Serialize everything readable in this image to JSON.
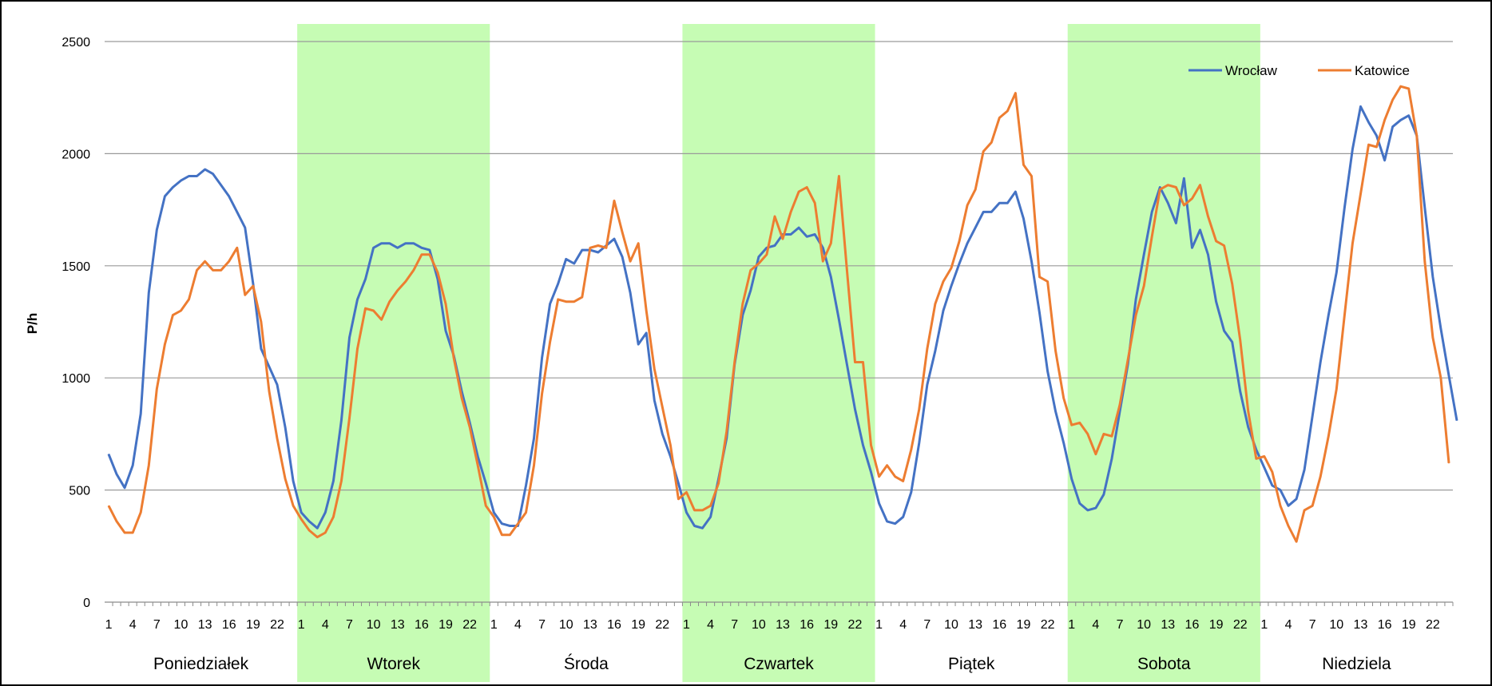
{
  "chart_data": {
    "type": "line",
    "ylabel": "P/h",
    "ylim": [
      0,
      2500
    ],
    "yticks": [
      0,
      500,
      1000,
      1500,
      2000,
      2500
    ],
    "grid": true,
    "legend_position": "top-right",
    "hour_tick_labels": [
      "1",
      "4",
      "7",
      "10",
      "13",
      "16",
      "19",
      "22"
    ],
    "days": [
      "Poniedziałek",
      "Wtorek",
      "Środa",
      "Czwartek",
      "Piątek",
      "Sobota",
      "Niedziela"
    ],
    "highlight_days": [
      1,
      3,
      5
    ],
    "highlight_color": "#c6fcb4",
    "series": [
      {
        "name": "Wrocław",
        "color": "#4472c4",
        "values": [
          660,
          570,
          510,
          610,
          840,
          1380,
          1660,
          1810,
          1850,
          1880,
          1900,
          1900,
          1930,
          1910,
          1860,
          1810,
          1740,
          1670,
          1420,
          1130,
          1050,
          970,
          780,
          540,
          400,
          360,
          330,
          400,
          540,
          810,
          1180,
          1350,
          1440,
          1580,
          1600,
          1600,
          1580,
          1600,
          1600,
          1580,
          1570,
          1440,
          1210,
          1100,
          940,
          800,
          650,
          530,
          400,
          350,
          340,
          340,
          520,
          730,
          1090,
          1330,
          1420,
          1530,
          1510,
          1570,
          1570,
          1560,
          1590,
          1620,
          1540,
          1380,
          1150,
          1200,
          900,
          750,
          650,
          530,
          400,
          340,
          330,
          380,
          550,
          730,
          1060,
          1280,
          1390,
          1540,
          1580,
          1590,
          1640,
          1640,
          1670,
          1630,
          1640,
          1580,
          1450,
          1260,
          1060,
          860,
          700,
          580,
          440,
          360,
          350,
          380,
          490,
          710,
          970,
          1120,
          1300,
          1410,
          1510,
          1600,
          1670,
          1740,
          1740,
          1780,
          1780,
          1830,
          1710,
          1520,
          1290,
          1030,
          850,
          710,
          550,
          440,
          410,
          420,
          480,
          640,
          850,
          1060,
          1350,
          1550,
          1740,
          1850,
          1780,
          1690,
          1890,
          1580,
          1660,
          1550,
          1340,
          1210,
          1160,
          940,
          780,
          680,
          600,
          520,
          500,
          430,
          460,
          590,
          830,
          1070,
          1280,
          1470,
          1760,
          2020,
          2210,
          2140,
          2080,
          1970,
          2120,
          2150,
          2170,
          2080,
          1760,
          1450,
          1220,
          1010,
          810
        ]
      },
      {
        "name": "Katowice",
        "color": "#ed7d31",
        "values": [
          430,
          360,
          310,
          310,
          400,
          610,
          950,
          1150,
          1280,
          1300,
          1350,
          1480,
          1520,
          1480,
          1480,
          1520,
          1580,
          1370,
          1410,
          1250,
          940,
          730,
          550,
          430,
          370,
          320,
          290,
          310,
          380,
          540,
          820,
          1130,
          1310,
          1300,
          1260,
          1340,
          1390,
          1430,
          1480,
          1550,
          1550,
          1470,
          1330,
          1090,
          910,
          780,
          610,
          430,
          380,
          300,
          300,
          350,
          400,
          610,
          930,
          1160,
          1350,
          1340,
          1340,
          1360,
          1580,
          1590,
          1580,
          1790,
          1650,
          1520,
          1600,
          1300,
          1040,
          870,
          700,
          460,
          490,
          410,
          410,
          430,
          530,
          760,
          1070,
          1330,
          1480,
          1510,
          1550,
          1720,
          1620,
          1740,
          1830,
          1850,
          1780,
          1520,
          1600,
          1900,
          1480,
          1070,
          1070,
          700,
          560,
          610,
          560,
          540,
          680,
          860,
          1130,
          1330,
          1430,
          1490,
          1610,
          1770,
          1840,
          2010,
          2050,
          2160,
          2190,
          2270,
          1950,
          1900,
          1450,
          1430,
          1120,
          910,
          790,
          800,
          750,
          660,
          750,
          740,
          880,
          1080,
          1280,
          1410,
          1630,
          1840,
          1860,
          1850,
          1770,
          1800,
          1860,
          1720,
          1610,
          1590,
          1420,
          1170,
          850,
          640,
          650,
          580,
          430,
          340,
          270,
          410,
          430,
          560,
          740,
          950,
          1280,
          1600,
          1820,
          2040,
          2030,
          2150,
          2240,
          2300,
          2290,
          2080,
          1520,
          1180,
          1000,
          620
        ]
      }
    ]
  }
}
